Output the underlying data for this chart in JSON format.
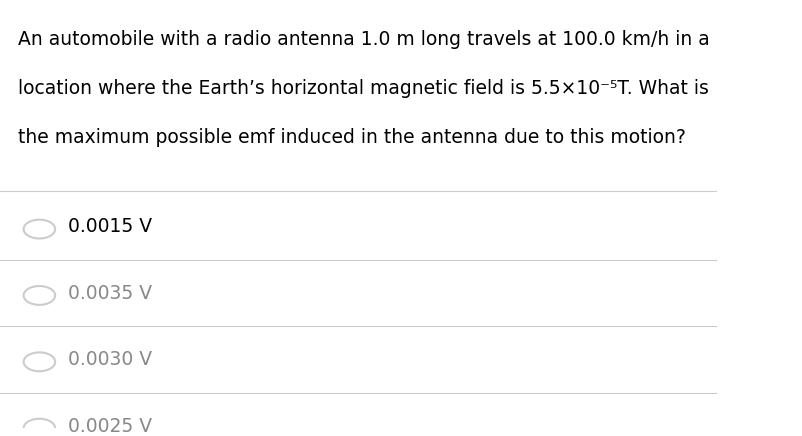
{
  "question_lines": [
    "An automobile with a radio antenna 1.0 m long travels at 100.0 km/h in a",
    "location where the Earth’s horizontal magnetic field is 5.5×10⁻⁵T. What is",
    "the maximum possible emf induced in the antenna due to this motion?"
  ],
  "options": [
    "0.0015 V",
    "0.0035 V",
    "0.0030 V",
    "0.0025 V"
  ],
  "background_color": "#ffffff",
  "text_color": "#000000",
  "option_text_color_first": "#000000",
  "option_text_color_rest": "#888888",
  "circle_color": "#cccccc",
  "line_color": "#cccccc",
  "question_fontsize": 13.5,
  "option_fontsize": 13.5,
  "fig_width": 8.02,
  "fig_height": 4.36
}
